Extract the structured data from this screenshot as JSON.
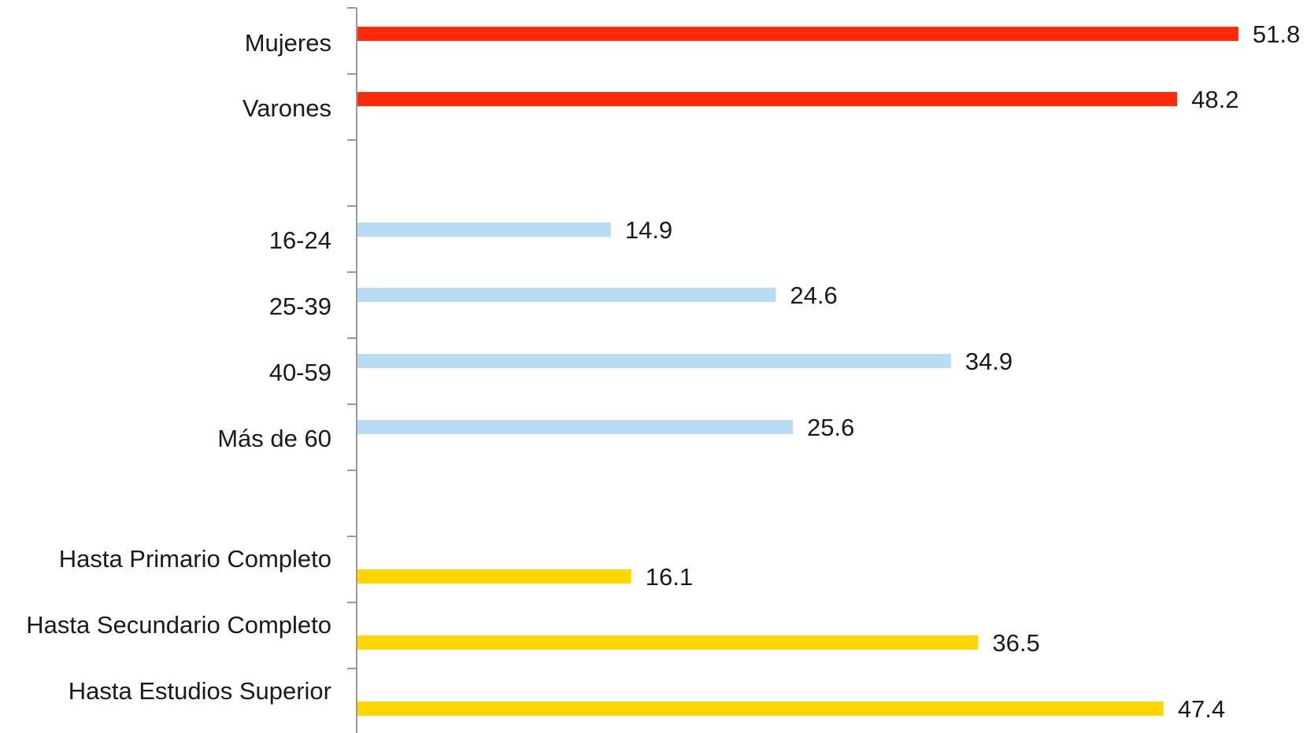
{
  "chart_data": {
    "type": "bar",
    "orientation": "horizontal",
    "title": "",
    "xlabel": "",
    "ylabel": "",
    "xlim": [
      0,
      55
    ],
    "grid": false,
    "legend": "none",
    "categories": [
      "Mujeres",
      "Varones",
      "",
      "16-24",
      "25-39",
      "40-59",
      "Más de 60",
      "",
      "Hasta Primario Completo",
      "Hasta Secundario Completo",
      "Hasta Estudios Superior"
    ],
    "values": [
      51.8,
      48.2,
      null,
      14.9,
      24.6,
      34.9,
      25.6,
      null,
      16.1,
      36.5,
      47.4
    ],
    "data_labels": [
      "51.8",
      "48.2",
      "",
      "14.9",
      "24.6",
      "34.9",
      "25.6",
      "",
      "16.1",
      "36.5",
      "47.4"
    ],
    "groups": [
      {
        "categories": [
          "Mujeres",
          "Varones"
        ],
        "color": "#ff2a0a"
      },
      {
        "categories": [
          "16-24",
          "25-39",
          "40-59",
          "Más de 60"
        ],
        "color": "#b9dcf5"
      },
      {
        "categories": [
          "Hasta Primario Completo",
          "Hasta Secundario Completo",
          "Hasta Estudios Superior"
        ],
        "color": "#ffd700"
      }
    ],
    "bar_colors": [
      "#ff2a0a",
      "#ff2a0a",
      null,
      "#b9dcf5",
      "#b9dcf5",
      "#b9dcf5",
      "#b9dcf5",
      null,
      "#ffd700",
      "#ffd700",
      "#ffd700"
    ]
  }
}
